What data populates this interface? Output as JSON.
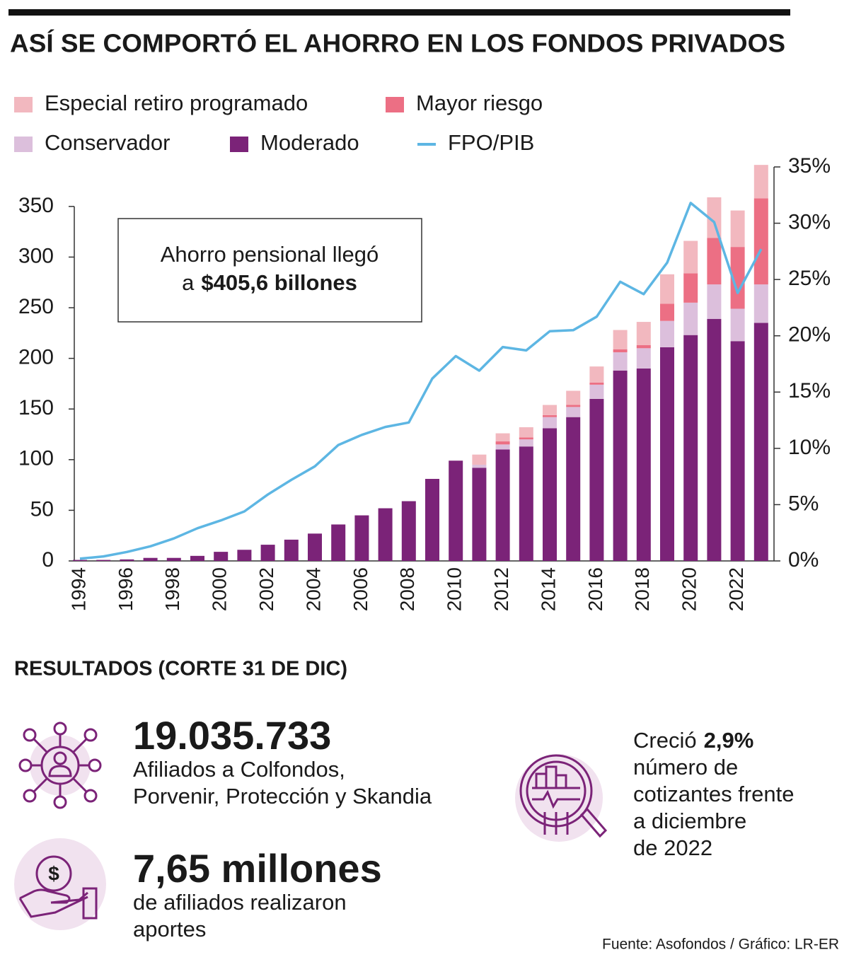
{
  "chart_data": {
    "type": "bar",
    "title": "ASÍ SE COMPORTÓ EL AHORRO EN LOS FONDOS PRIVADOS",
    "stacked": true,
    "categories": [
      "1994",
      null,
      "1996",
      null,
      "1998",
      null,
      "2000",
      null,
      "2002",
      null,
      "2004",
      null,
      "2006",
      null,
      "2008",
      null,
      "2010",
      null,
      "2012",
      null,
      "2014",
      null,
      "2016",
      null,
      "2018",
      null,
      "2020",
      null,
      "2022",
      null
    ],
    "series": [
      {
        "name": "Moderado",
        "type": "bar",
        "color": "#7b2378",
        "values": [
          1,
          1,
          1.5,
          3,
          3,
          5,
          9,
          11,
          16,
          21,
          27,
          36,
          45,
          52,
          59,
          81,
          99,
          92,
          110,
          113,
          131,
          142,
          160,
          188,
          190,
          211,
          223,
          239,
          217,
          235
        ]
      },
      {
        "name": "Conservador",
        "type": "bar",
        "color": "#dcbfdc",
        "values": [
          0,
          0,
          0,
          0,
          0,
          0,
          0,
          0,
          0,
          0,
          0,
          0,
          0,
          0,
          0,
          0,
          0,
          3,
          5,
          7,
          11,
          10,
          14,
          18,
          20,
          26,
          32,
          34,
          32,
          38
        ]
      },
      {
        "name": "Mayor riesgo",
        "type": "bar",
        "color": "#ec6f84",
        "values": [
          0,
          0,
          0,
          0,
          0,
          0,
          0,
          0,
          0,
          0,
          0,
          0,
          0,
          0,
          0,
          0,
          0,
          0,
          3,
          2,
          2,
          2,
          2,
          3,
          3,
          17,
          29,
          46,
          61,
          85
        ]
      },
      {
        "name": "Especial retiro programado",
        "type": "bar",
        "color": "#f2b8bf",
        "values": [
          0,
          0,
          0,
          0,
          0,
          0,
          0,
          0,
          0,
          0,
          0,
          0,
          0,
          0,
          0,
          0,
          0,
          10,
          8,
          10,
          10,
          14,
          16,
          19,
          23,
          29,
          32,
          40,
          36,
          33
        ]
      },
      {
        "name": "FPO/PIB",
        "type": "line",
        "axis": "y2",
        "color": "#5db6e3",
        "values": [
          0.2,
          0.4,
          0.8,
          1.3,
          2.0,
          2.9,
          3.6,
          4.4,
          5.9,
          7.2,
          8.4,
          10.3,
          11.2,
          11.9,
          12.3,
          16.2,
          18.2,
          16.9,
          19.0,
          18.7,
          20.4,
          20.5,
          21.7,
          24.8,
          23.7,
          26.5,
          31.8,
          30.1,
          23.8,
          27.7
        ]
      }
    ],
    "ylim": [
      0,
      389
    ],
    "yticks": [
      0,
      50,
      100,
      150,
      200,
      250,
      300,
      350
    ],
    "y2lim": [
      0,
      35
    ],
    "y2ticks": [
      {
        "value": 0,
        "label": "0%"
      },
      {
        "value": 5,
        "label": "5%"
      },
      {
        "value": 10,
        "label": "10%"
      },
      {
        "value": 15,
        "label": "15%"
      },
      {
        "value": 20,
        "label": "20%"
      },
      {
        "value": 25,
        "label": "25%"
      },
      {
        "value": 30,
        "label": "30%"
      },
      {
        "value": 35,
        "label": "35%"
      }
    ],
    "annotation": {
      "line1": "Ahorro pensional llegó",
      "line2_prefix": "a",
      "line2_bold": "$405,6 billones"
    }
  },
  "results": {
    "heading": "RESULTADOS (CORTE 31 DE DIC)",
    "affiliates": {
      "value": "19.035.733",
      "lines": [
        "Afiliados a Colfondos,",
        "Porvenir, Protección y Skandia"
      ]
    },
    "contributors": {
      "value": "7,65 millones",
      "lines": [
        "de afiliados realizaron",
        "aportes"
      ]
    },
    "growth": {
      "prefix": "Creció",
      "bold": "2,9%",
      "lines": [
        "número de",
        "cotizantes frente",
        "a diciembre",
        "de 2022"
      ]
    }
  },
  "source": "Fuente: Asofondos / Gráfico: LR-ER"
}
